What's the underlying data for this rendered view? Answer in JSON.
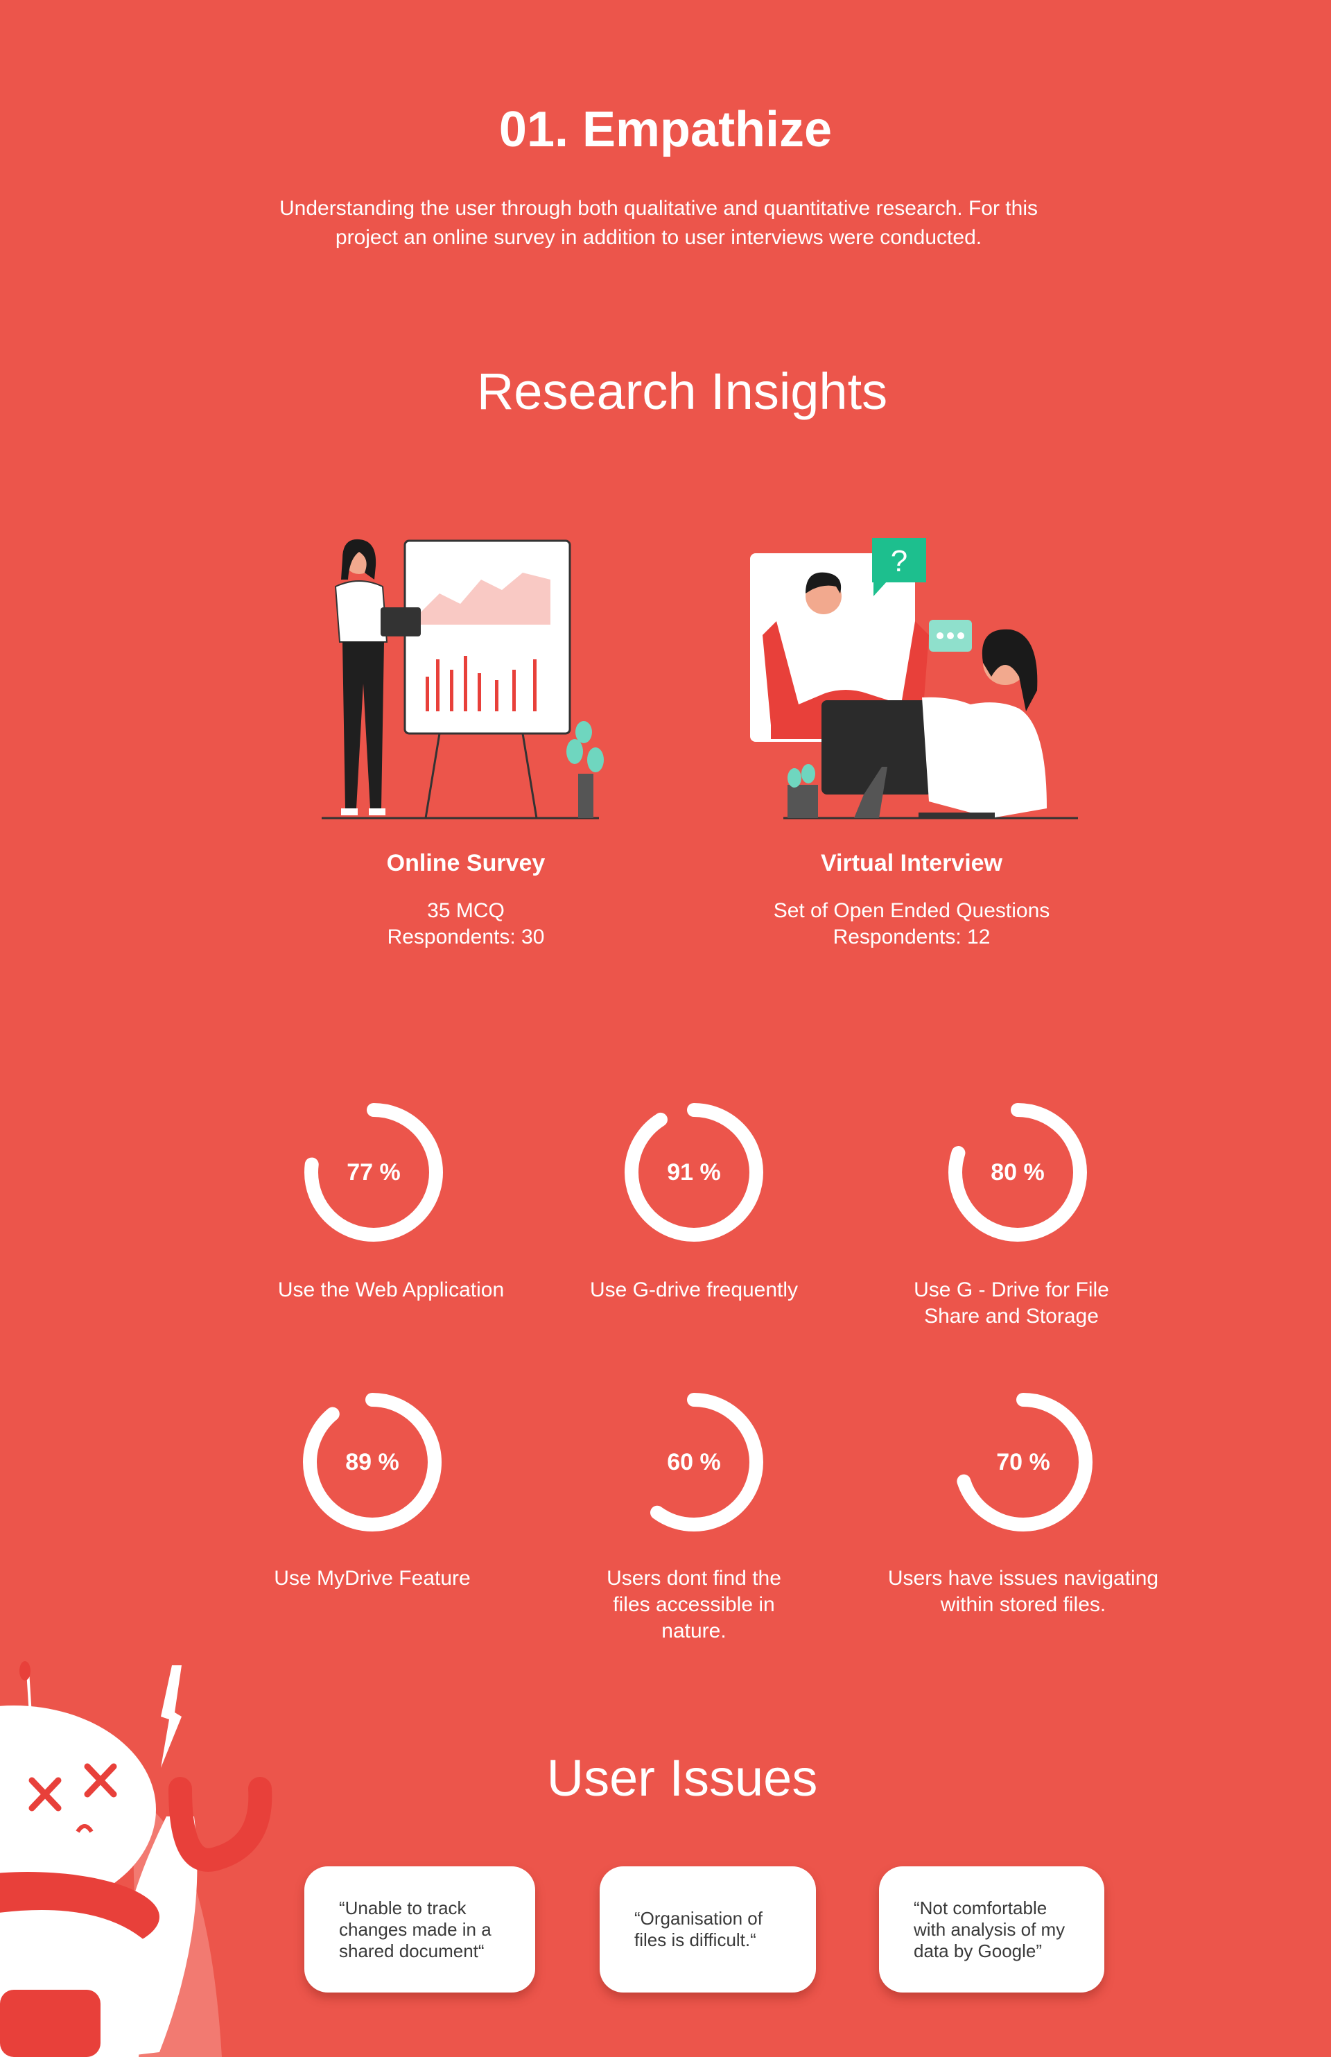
{
  "header": {
    "title": "01. Empathize",
    "intro": "Understanding the user through both qualitative and quantitative research. For this project an online survey in addition to user interviews were conducted."
  },
  "insights": {
    "heading": "Research Insights",
    "methods": [
      {
        "name": "Online Survey",
        "lines": [
          "35 MCQ",
          "Respondents: 30"
        ],
        "icon": "presentation-board-illustration"
      },
      {
        "name": "Virtual Interview",
        "lines": [
          "Set of Open Ended Questions",
          "Respondents: 12"
        ],
        "icon": "video-call-illustration"
      }
    ]
  },
  "stats": [
    {
      "value": 77,
      "text": "77 %",
      "label": "Use the Web Application"
    },
    {
      "value": 91,
      "text": "91 %",
      "label": "Use G-drive frequently"
    },
    {
      "value": 80,
      "text": "80 %",
      "label": "Use G - Drive for File Share and Storage"
    },
    {
      "value": 89,
      "text": "89 %",
      "label": "Use MyDrive Feature"
    },
    {
      "value": 60,
      "text": "60 %",
      "label": "Users dont find the files accessible in nature."
    },
    {
      "value": 70,
      "text": "70 %",
      "label": "Users have issues navigating within stored files."
    }
  ],
  "issues": {
    "heading": "User Issues",
    "cards": [
      "“Unable to track changes made in a shared document“",
      "“Organisation of files is difficult.“",
      "“Not comfortable with analysis of my data by Google”"
    ]
  },
  "colors": {
    "background": "#EC554B",
    "accent_dark": "#E8403A",
    "text": "#FFFFFF",
    "card_text": "#3A3A3A",
    "teal": "#1DBF8E"
  }
}
